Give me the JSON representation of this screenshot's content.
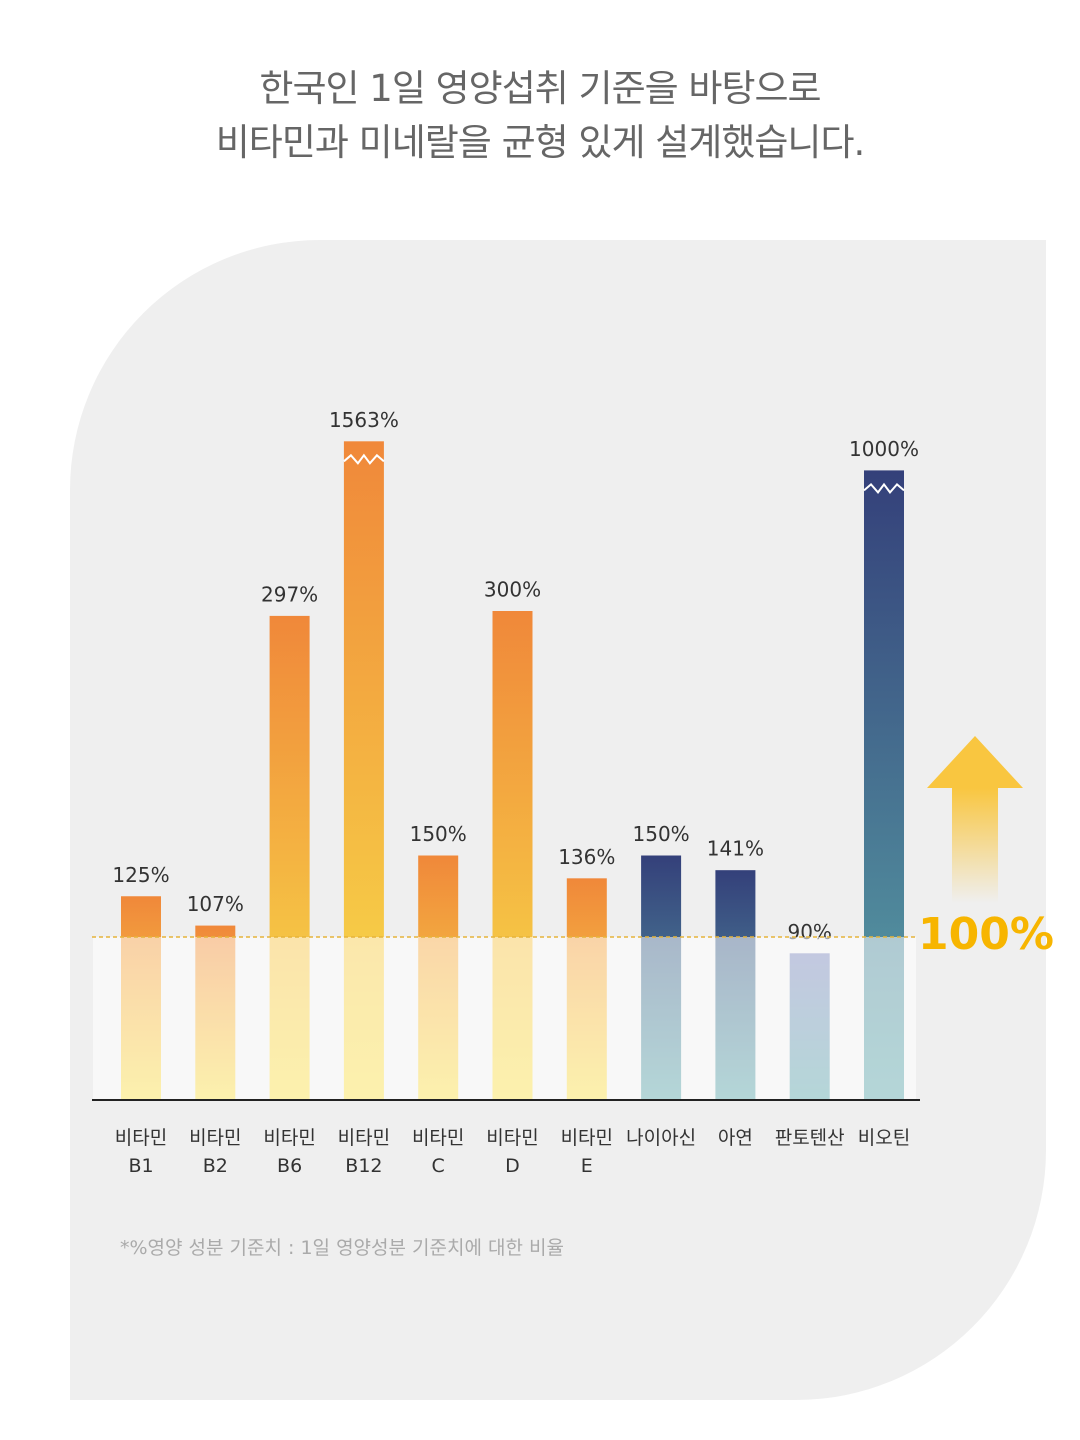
{
  "chart_data": {
    "type": "bar",
    "title": [
      "한국인 1일 영양섭취 기준을 바탕으로",
      "비타민과 미네랄을 균형 있게 설계했습니다."
    ],
    "categories": [
      "비타민 B1",
      "비타민 B2",
      "비타민 B6",
      "비타민 B12",
      "비타민 C",
      "비타민 D",
      "비타민 E",
      "나이아신",
      "아연",
      "판토텐산",
      "비오틴"
    ],
    "values": [
      125,
      107,
      297,
      1563,
      150,
      300,
      136,
      150,
      141,
      90,
      1000
    ],
    "value_labels": [
      "125%",
      "107%",
      "297%",
      "1563%",
      "150%",
      "300%",
      "136%",
      "150%",
      "141%",
      "90%",
      "1000%"
    ],
    "colors": [
      "#f0883a",
      "#f0883a",
      "#f0883a",
      "#f0883a",
      "#f0883a",
      "#f0883a",
      "#f0883a",
      "#34407a",
      "#34407a",
      "#7b86bb",
      "#34407a"
    ],
    "colors_bottom": [
      "#f8e04a",
      "#f8e04a",
      "#f8e04a",
      "#f8e04a",
      "#f8e04a",
      "#f8e04a",
      "#f8e04a",
      "#5aa5a8",
      "#5aa5a8",
      "#5aa5a8",
      "#5aa5a8"
    ],
    "reference_line": {
      "value": 100,
      "label": "100%"
    },
    "footnote": "*%영양 성분 기준치 : 1일 영양성분 기준치에 대한 비율"
  }
}
